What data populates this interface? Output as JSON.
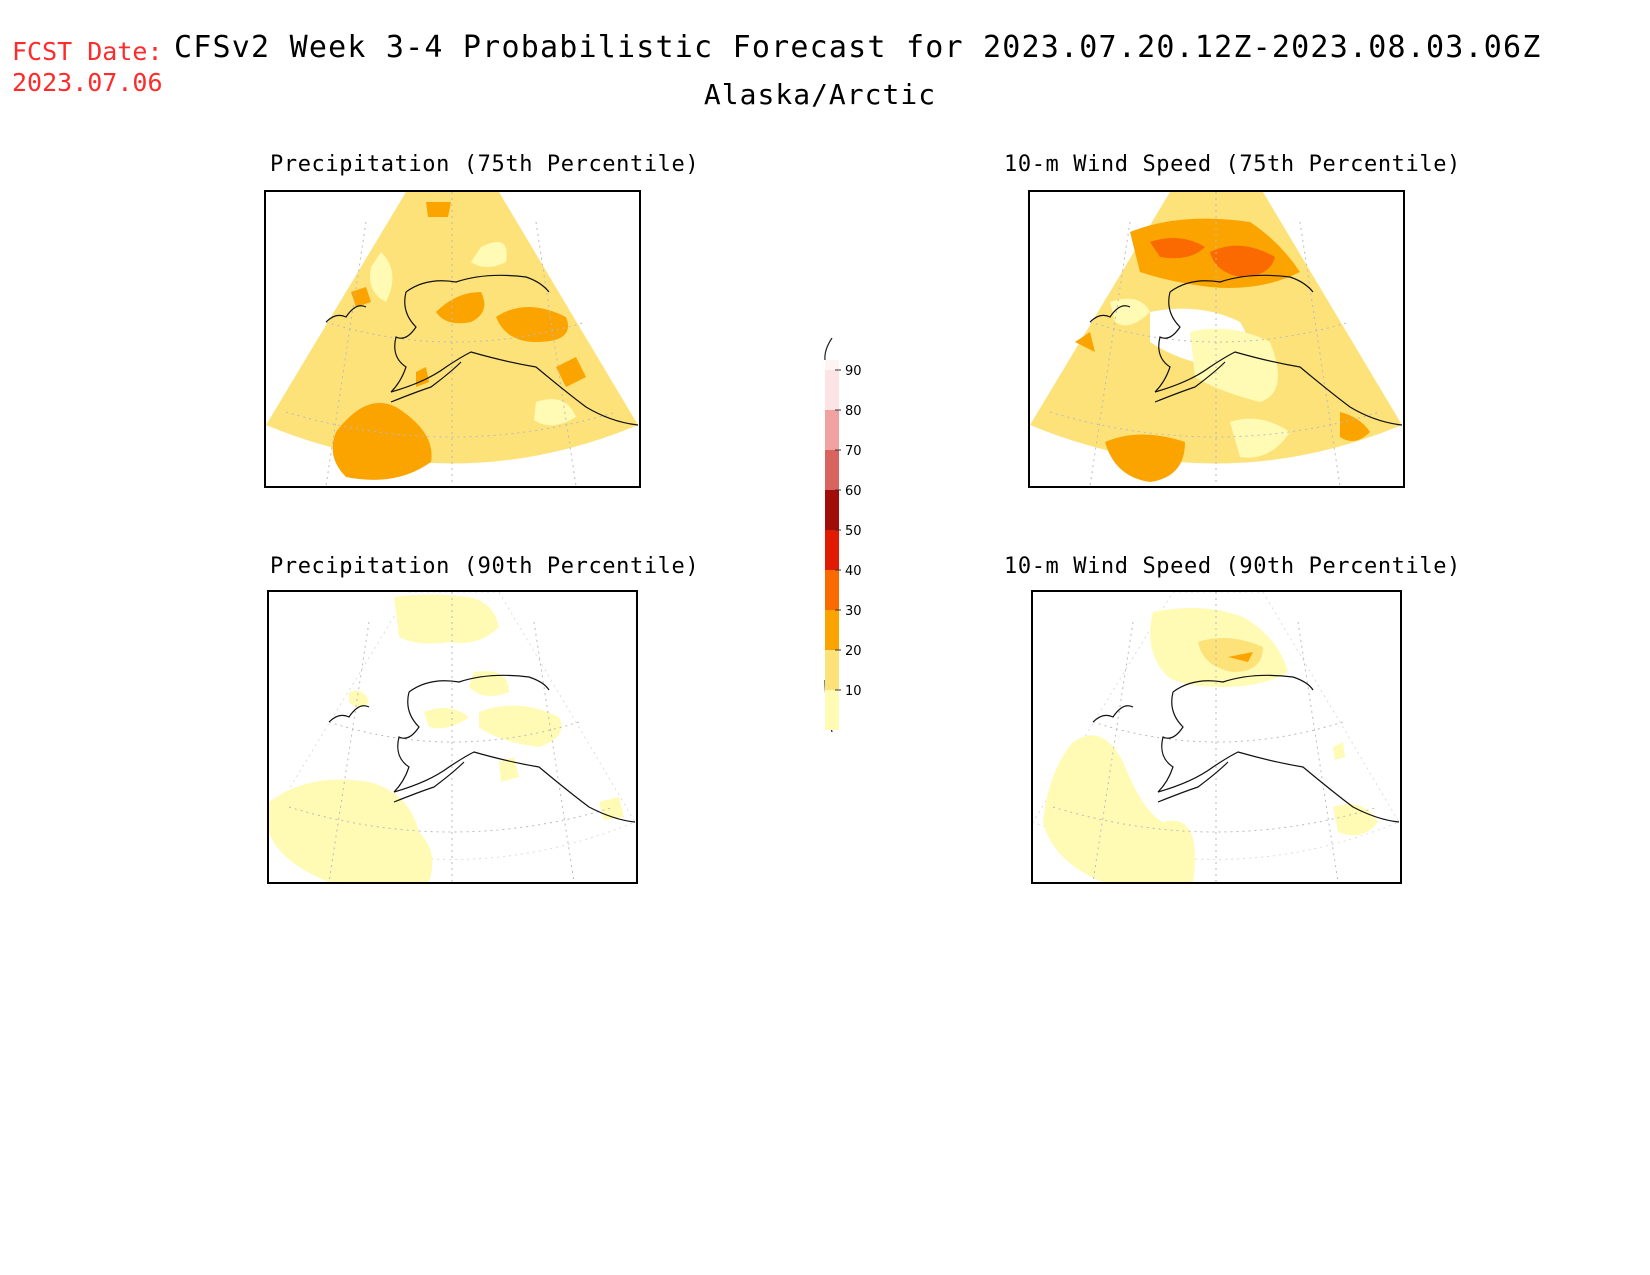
{
  "header": {
    "fcst_label": "FCST Date:",
    "fcst_date": "2023.07.06",
    "title": "CFSv2 Week 3-4 Probabilistic Forecast for 2023.07.20.12Z-2023.08.03.06Z",
    "region": "Alaska/Arctic"
  },
  "panels": [
    {
      "id": "precip75",
      "title": "Precipitation (75th Percentile)"
    },
    {
      "id": "wind75",
      "title": "10-m Wind Speed (75th Percentile)"
    },
    {
      "id": "precip90",
      "title": "Precipitation (90th Percentile)"
    },
    {
      "id": "wind90",
      "title": "10-m Wind Speed (90th Percentile)"
    }
  ],
  "colorbar": {
    "levels": [
      "90",
      "80",
      "70",
      "60",
      "50",
      "40",
      "30",
      "20",
      "10"
    ],
    "colors": [
      "#fde4e4",
      "#f2a1a1",
      "#d9635f",
      "#a10d07",
      "#e01b00",
      "#fa6a00",
      "#fba400",
      "#fde27a",
      "#fffbb4"
    ]
  }
}
